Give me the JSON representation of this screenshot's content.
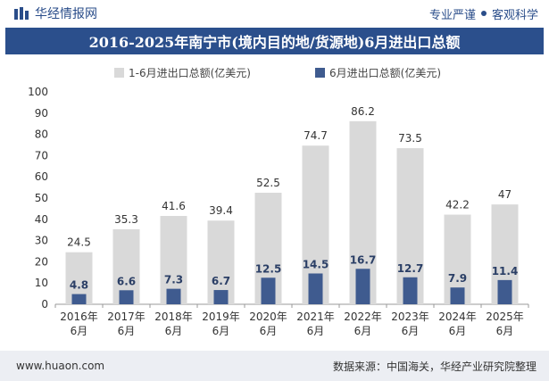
{
  "header": {
    "brand": "华经情报网",
    "slogan_left": "专业严谨",
    "slogan_right": "客观科学"
  },
  "footer": {
    "url": "www.huaon.com",
    "source": "数据来源：中国海关，华经产业研究院整理"
  },
  "chart_data": {
    "type": "bar",
    "title": "2016-2025年南宁市(境内目的地/货源地)6月进出口总额",
    "categories": [
      [
        "2016年",
        "6月"
      ],
      [
        "2017年",
        "6月"
      ],
      [
        "2018年",
        "6月"
      ],
      [
        "2019年",
        "6月"
      ],
      [
        "2020年",
        "6月"
      ],
      [
        "2021年",
        "6月"
      ],
      [
        "2022年",
        "6月"
      ],
      [
        "2023年",
        "6月"
      ],
      [
        "2024年",
        "6月"
      ],
      [
        "2025年",
        "6月"
      ]
    ],
    "series": [
      {
        "name": "1-6月进出口总额(亿美元)",
        "color": "#d9d9d9",
        "values": [
          24.5,
          35.3,
          41.6,
          39.4,
          52.5,
          74.7,
          86.2,
          73.5,
          42.2,
          47
        ]
      },
      {
        "name": "6月进出口总额(亿美元)",
        "color": "#3f5b8f",
        "values": [
          4.8,
          6.6,
          7.3,
          6.7,
          12.5,
          14.5,
          16.7,
          12.7,
          7.9,
          11.4
        ]
      }
    ],
    "ylim": [
      0,
      100
    ],
    "yticks": [
      0,
      10,
      20,
      30,
      40,
      50,
      60,
      70,
      80,
      90,
      100
    ],
    "grid": false,
    "legend": "top-center",
    "overlap": true
  }
}
